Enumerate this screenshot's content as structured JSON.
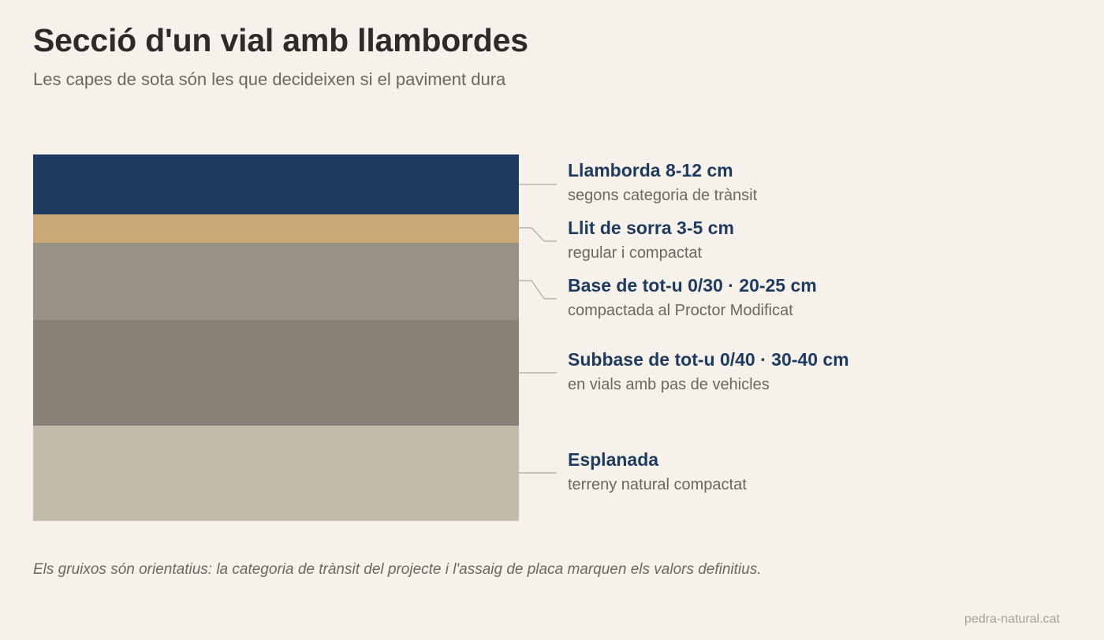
{
  "title": "Secció d'un vial amb llambordes",
  "subtitle": "Les capes de sota són les que decideixen si el paviment dura",
  "layers": [
    {
      "title": "Llamborda 8-12 cm",
      "desc": "segons categoria de trànsit",
      "color": "#1e3a5f"
    },
    {
      "title": "Llit de sorra 3-5 cm",
      "desc": "regular i compactat",
      "color": "#c9a876"
    },
    {
      "title": "Base de tot-u 0/30 · 20-25 cm",
      "desc": "compactada al Proctor Modificat",
      "color": "#9a9185"
    },
    {
      "title": "Subbase de tot-u 0/40 · 30-40 cm",
      "desc": "en vials amb pas de vehicles",
      "color": "#8a8176"
    },
    {
      "title": "Esplanada",
      "desc": "terreny natural compactat",
      "color": "#c5bbad"
    }
  ],
  "footnote": "Els gruixos són orientatius: la categoria de trànsit del projecte i l'assaig de placa marquen els valors definitius.",
  "source": "pedra-natural.cat"
}
